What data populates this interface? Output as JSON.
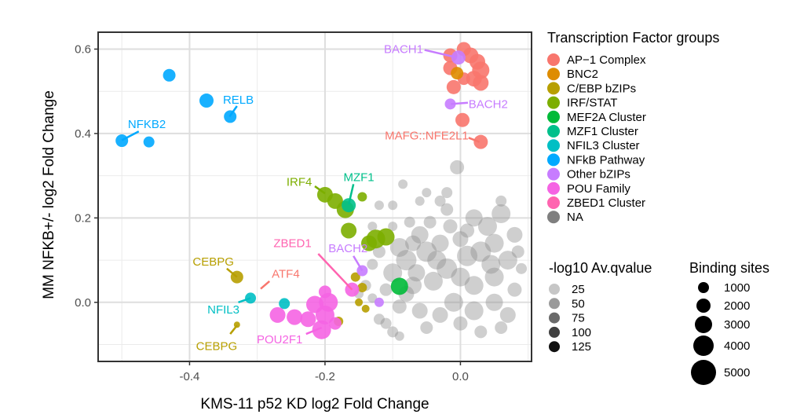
{
  "chart_data": {
    "type": "scatter",
    "xlabel": "KMS-11 p52 KD log2 Fold Change",
    "ylabel": "MM NFKB+/- log2 Fold Change",
    "xlim": [
      -0.535,
      0.105
    ],
    "ylim": [
      -0.14,
      0.64
    ],
    "x_ticks": [
      {
        "v": -0.4,
        "label": "-0.4"
      },
      {
        "v": -0.2,
        "label": "-0.2"
      },
      {
        "v": 0.0,
        "label": "0.0"
      }
    ],
    "y_ticks": [
      {
        "v": 0.0,
        "label": "0.0"
      },
      {
        "v": 0.2,
        "label": "0.2"
      },
      {
        "v": 0.4,
        "label": "0.4"
      },
      {
        "v": 0.6,
        "label": "0.6"
      }
    ],
    "grid": true,
    "legend_position": "right",
    "groups_legend": {
      "title": "Transcription Factor groups",
      "items": [
        {
          "name": "AP−1 Complex",
          "color": "#F8766D"
        },
        {
          "name": "BNC2",
          "color": "#DE8C00"
        },
        {
          "name": "C/EBP bZIPs",
          "color": "#B79F00"
        },
        {
          "name": "IRF/STAT",
          "color": "#7CAE00"
        },
        {
          "name": "MEF2A Cluster",
          "color": "#00BA38"
        },
        {
          "name": "MZF1 Cluster",
          "color": "#00C08B"
        },
        {
          "name": "NFIL3 Cluster",
          "color": "#00BFC4"
        },
        {
          "name": "NFkB Pathway",
          "color": "#00A9FF"
        },
        {
          "name": "Other bZIPs",
          "color": "#C77CFF"
        },
        {
          "name": "POU Family",
          "color": "#F564E3"
        },
        {
          "name": "ZBED1 Cluster",
          "color": "#FF64B0"
        },
        {
          "name": "NA",
          "color": "#7F7F7F"
        }
      ]
    },
    "qvalue_legend": {
      "title": "-log10 Av.qvalue",
      "items": [
        {
          "label": "25",
          "shade": "#c6c6c6"
        },
        {
          "label": "50",
          "shade": "#9a9a9a"
        },
        {
          "label": "75",
          "shade": "#6a6a6a"
        },
        {
          "label": "100",
          "shade": "#404040"
        },
        {
          "label": "125",
          "shade": "#111111"
        }
      ]
    },
    "size_legend": {
      "title": "Binding sites",
      "items": [
        {
          "label": "1000",
          "r": 7
        },
        {
          "label": "2000",
          "r": 9
        },
        {
          "label": "3000",
          "r": 11
        },
        {
          "label": "4000",
          "r": 13
        },
        {
          "label": "5000",
          "r": 16
        }
      ]
    },
    "series": [
      {
        "group": "AP−1 Complex",
        "color": "#F8766D",
        "points": [
          [
            -0.015,
            0.585,
            9
          ],
          [
            0.005,
            0.6,
            9
          ],
          [
            0.015,
            0.585,
            10
          ],
          [
            0.025,
            0.57,
            10
          ],
          [
            0.03,
            0.55,
            11
          ],
          [
            0.02,
            0.53,
            10
          ],
          [
            0.03,
            0.52,
            10
          ],
          [
            -0.015,
            0.555,
            9
          ],
          [
            -0.01,
            0.51,
            9
          ],
          [
            0.005,
            0.53,
            8
          ],
          [
            0.003,
            0.432,
            9
          ],
          [
            0.03,
            0.38,
            9
          ]
        ]
      },
      {
        "group": "BNC2",
        "color": "#DE8C00",
        "points": [
          [
            -0.005,
            0.543,
            8
          ]
        ]
      },
      {
        "group": "C/EBP bZIPs",
        "color": "#B79F00",
        "points": [
          [
            -0.33,
            0.06,
            8
          ],
          [
            -0.33,
            -0.053,
            4
          ],
          [
            -0.155,
            0.06,
            6
          ],
          [
            -0.145,
            0.035,
            6
          ],
          [
            -0.15,
            0.0,
            5
          ],
          [
            -0.14,
            -0.015,
            5
          ],
          [
            -0.18,
            -0.045,
            6
          ]
        ]
      },
      {
        "group": "IRF/STAT",
        "color": "#7CAE00",
        "points": [
          [
            -0.2,
            0.255,
            10
          ],
          [
            -0.185,
            0.24,
            10
          ],
          [
            -0.17,
            0.22,
            11
          ],
          [
            -0.165,
            0.17,
            10
          ],
          [
            -0.125,
            0.15,
            12
          ],
          [
            -0.11,
            0.155,
            11
          ],
          [
            -0.135,
            0.14,
            10
          ],
          [
            -0.145,
            0.25,
            6
          ]
        ]
      },
      {
        "group": "MEF2A Cluster",
        "color": "#00BA38",
        "points": [
          [
            -0.09,
            0.038,
            11
          ]
        ]
      },
      {
        "group": "MZF1 Cluster",
        "color": "#00C08B",
        "points": [
          [
            -0.165,
            0.23,
            9
          ]
        ]
      },
      {
        "group": "NFIL3 Cluster",
        "color": "#00BFC4",
        "points": [
          [
            -0.31,
            0.01,
            7
          ],
          [
            -0.26,
            -0.003,
            7
          ]
        ]
      },
      {
        "group": "NFkB Pathway",
        "color": "#00A9FF",
        "points": [
          [
            -0.43,
            0.538,
            8
          ],
          [
            -0.375,
            0.478,
            9
          ],
          [
            -0.34,
            0.44,
            8
          ],
          [
            -0.5,
            0.383,
            8
          ],
          [
            -0.46,
            0.38,
            7
          ]
        ]
      },
      {
        "group": "Other bZIPs",
        "color": "#C77CFF",
        "points": [
          [
            -0.003,
            0.58,
            9
          ],
          [
            -0.015,
            0.47,
            7
          ],
          [
            -0.145,
            0.075,
            7
          ],
          [
            -0.12,
            0.0,
            6
          ]
        ]
      },
      {
        "group": "POU Family",
        "color": "#F564E3",
        "points": [
          [
            -0.195,
            0.0,
            12
          ],
          [
            -0.215,
            -0.005,
            11
          ],
          [
            -0.2,
            -0.03,
            12
          ],
          [
            -0.225,
            -0.04,
            10
          ],
          [
            -0.245,
            -0.035,
            10
          ],
          [
            -0.27,
            -0.03,
            10
          ],
          [
            -0.205,
            -0.065,
            12
          ],
          [
            -0.185,
            -0.05,
            8
          ],
          [
            -0.16,
            0.03,
            9
          ],
          [
            -0.2,
            0.025,
            8
          ]
        ]
      },
      {
        "group": "ZBED1 Cluster",
        "color": "#FF64B0",
        "points": []
      }
    ],
    "labels": [
      {
        "text": "BACH1",
        "color": "#C77CFF",
        "x": -0.055,
        "y": 0.6,
        "anchor": "end",
        "lx1": -0.053,
        "ly1": 0.598,
        "lx2": -0.005,
        "ly2": 0.58
      },
      {
        "text": "BACH2",
        "color": "#C77CFF",
        "x": 0.012,
        "y": 0.47,
        "anchor": "start",
        "lx1": 0.011,
        "ly1": 0.473,
        "lx2": -0.014,
        "ly2": 0.47
      },
      {
        "text": "MAFG::NFE2L1",
        "color": "#F8766D",
        "x": 0.012,
        "y": 0.395,
        "anchor": "end",
        "lx1": 0.012,
        "ly1": 0.39,
        "lx2": 0.028,
        "ly2": 0.38
      },
      {
        "text": "RELB",
        "color": "#00A9FF",
        "x": -0.328,
        "y": 0.48,
        "anchor": "middle",
        "lx1": -0.33,
        "ly1": 0.465,
        "lx2": -0.341,
        "ly2": 0.44
      },
      {
        "text": "NFKB2",
        "color": "#00A9FF",
        "x": -0.463,
        "y": 0.422,
        "anchor": "middle",
        "lx1": -0.475,
        "ly1": 0.405,
        "lx2": -0.5,
        "ly2": 0.384
      },
      {
        "text": "IRF4",
        "color": "#7CAE00",
        "x": -0.238,
        "y": 0.285,
        "anchor": "middle",
        "lx1": -0.215,
        "ly1": 0.275,
        "lx2": -0.2,
        "ly2": 0.258
      },
      {
        "text": "MZF1",
        "color": "#00C08B",
        "x": -0.15,
        "y": 0.297,
        "anchor": "middle",
        "lx1": -0.158,
        "ly1": 0.28,
        "lx2": -0.165,
        "ly2": 0.232
      },
      {
        "text": "ZBED1",
        "color": "#FF64B0",
        "x": -0.248,
        "y": 0.14,
        "anchor": "middle",
        "lx1": -0.21,
        "ly1": 0.115,
        "lx2": -0.16,
        "ly2": 0.03
      },
      {
        "text": "BACH2",
        "color": "#C77CFF",
        "x": -0.166,
        "y": 0.128,
        "anchor": "middle",
        "lx1": -0.158,
        "ly1": 0.11,
        "lx2": -0.145,
        "ly2": 0.075
      },
      {
        "text": "CEBPG",
        "color": "#B79F00",
        "x": -0.365,
        "y": 0.096,
        "anchor": "middle",
        "lx1": -0.345,
        "ly1": 0.08,
        "lx2": -0.33,
        "ly2": 0.06
      },
      {
        "text": "ATF4",
        "color": "#F8766D",
        "x": -0.258,
        "y": 0.068,
        "anchor": "middle",
        "lx1": -0.282,
        "ly1": 0.05,
        "lx2": -0.295,
        "ly2": 0.032
      },
      {
        "text": "NFIL3",
        "color": "#00BFC4",
        "x": -0.35,
        "y": -0.017,
        "anchor": "middle",
        "lx1": -0.328,
        "ly1": 0.0,
        "lx2": -0.31,
        "ly2": 0.01
      },
      {
        "text": "CEBPG",
        "color": "#B79F00",
        "x": -0.36,
        "y": -0.104,
        "anchor": "middle",
        "lx1": -0.34,
        "ly1": -0.075,
        "lx2": -0.33,
        "ly2": -0.055
      },
      {
        "text": "POU2F1",
        "color": "#F564E3",
        "x": -0.267,
        "y": -0.088,
        "anchor": "middle",
        "lx1": -0.228,
        "ly1": -0.075,
        "lx2": -0.205,
        "ly2": -0.06
      }
    ],
    "na_points": [
      [
        -0.005,
        0.32,
        9
      ],
      [
        -0.03,
        0.24,
        7
      ],
      [
        -0.06,
        0.24,
        6
      ],
      [
        -0.075,
        0.19,
        7
      ],
      [
        -0.1,
        0.23,
        6
      ],
      [
        -0.085,
        0.28,
        6
      ],
      [
        -0.12,
        0.23,
        6
      ],
      [
        -0.1,
        0.18,
        6
      ],
      [
        -0.045,
        0.19,
        8
      ],
      [
        -0.02,
        0.22,
        8
      ],
      [
        0.0,
        0.15,
        10
      ],
      [
        0.02,
        0.2,
        11
      ],
      [
        0.04,
        0.18,
        12
      ],
      [
        0.06,
        0.21,
        12
      ],
      [
        0.08,
        0.16,
        10
      ],
      [
        0.07,
        0.1,
        12
      ],
      [
        0.05,
        0.06,
        12
      ],
      [
        0.02,
        0.04,
        12
      ],
      [
        -0.02,
        0.08,
        13
      ],
      [
        -0.05,
        0.12,
        13
      ],
      [
        -0.08,
        0.1,
        13
      ],
      [
        -0.1,
        0.07,
        12
      ],
      [
        -0.09,
        0.13,
        12
      ],
      [
        -0.06,
        0.16,
        11
      ],
      [
        -0.03,
        0.14,
        11
      ],
      [
        0.01,
        0.11,
        13
      ],
      [
        0.03,
        0.12,
        13
      ],
      [
        0.05,
        0.14,
        12
      ],
      [
        -0.04,
        0.05,
        12
      ],
      [
        -0.07,
        0.04,
        11
      ],
      [
        -0.01,
        0.0,
        12
      ],
      [
        0.02,
        -0.02,
        12
      ],
      [
        0.05,
        0.0,
        11
      ],
      [
        0.07,
        -0.03,
        10
      ],
      [
        -0.03,
        -0.03,
        10
      ],
      [
        -0.06,
        -0.02,
        10
      ],
      [
        -0.09,
        -0.01,
        9
      ],
      [
        -0.11,
        0.03,
        8
      ],
      [
        -0.12,
        -0.04,
        7
      ],
      [
        -0.1,
        -0.07,
        7
      ],
      [
        -0.05,
        -0.06,
        8
      ],
      [
        0.0,
        -0.05,
        9
      ],
      [
        0.03,
        -0.07,
        8
      ],
      [
        0.06,
        -0.06,
        8
      ],
      [
        0.08,
        0.03,
        9
      ],
      [
        -0.13,
        0.09,
        7
      ],
      [
        -0.12,
        0.12,
        8
      ],
      [
        -0.14,
        0.04,
        7
      ],
      [
        -0.15,
        0.02,
        6
      ],
      [
        -0.13,
        0.18,
        6
      ],
      [
        0.09,
        0.08,
        7
      ],
      [
        0.085,
        0.12,
        8
      ],
      [
        -0.015,
        0.18,
        9
      ],
      [
        0.01,
        0.17,
        9
      ],
      [
        -0.065,
        0.07,
        11
      ],
      [
        -0.035,
        0.1,
        12
      ],
      [
        0.045,
        0.09,
        12
      ],
      [
        -0.08,
        0.02,
        10
      ],
      [
        -0.11,
        -0.05,
        7
      ],
      [
        -0.09,
        -0.08,
        6
      ],
      [
        -0.13,
        0.01,
        6
      ],
      [
        -0.02,
        0.26,
        7
      ],
      [
        0.06,
        0.24,
        7
      ],
      [
        -0.05,
        0.26,
        6
      ],
      [
        -0.07,
        0.14,
        10
      ],
      [
        0.0,
        0.06,
        12
      ]
    ]
  }
}
